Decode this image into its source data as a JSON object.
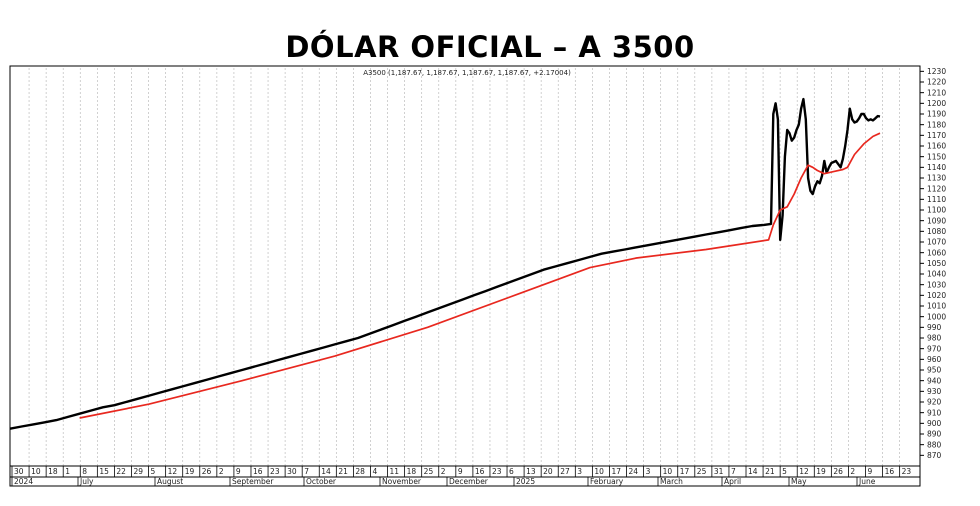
{
  "chart_data": {
    "type": "line",
    "title": "DÓLAR OFICIAL – A 3500",
    "legend_text": "A3500 (1,187.67, 1,187.67, 1,187.67, 1,187.67, +2.17004)",
    "ylim": [
      860,
      1235
    ],
    "y_ticks": [
      870,
      880,
      890,
      900,
      910,
      920,
      930,
      940,
      950,
      960,
      970,
      980,
      990,
      1000,
      1010,
      1020,
      1030,
      1040,
      1050,
      1060,
      1070,
      1080,
      1090,
      1100,
      1110,
      1120,
      1130,
      1140,
      1150,
      1160,
      1170,
      1180,
      1190,
      1200,
      1210,
      1220,
      1230
    ],
    "x_day_labels": [
      "30",
      "10",
      "18",
      "1",
      "8",
      "15",
      "22",
      "29",
      "5",
      "12",
      "19",
      "26",
      "2",
      "9",
      "16",
      "23",
      "30",
      "7",
      "14",
      "21",
      "28",
      "4",
      "11",
      "18",
      "25",
      "2",
      "9",
      "16",
      "23",
      "6",
      "13",
      "20",
      "27",
      "3",
      "10",
      "17",
      "24",
      "3",
      "10",
      "17",
      "25",
      "31",
      "7",
      "14",
      "21",
      "5",
      "12",
      "19",
      "26",
      "2",
      "9",
      "16",
      "23"
    ],
    "x_month_labels": [
      "2024",
      "July",
      "August",
      "September",
      "October",
      "November",
      "December",
      "2025",
      "February",
      "March",
      "April",
      "May",
      "June"
    ],
    "series": [
      {
        "color": "#000000",
        "values": [
          [
            0,
            895
          ],
          [
            5,
            897
          ],
          [
            10,
            899
          ],
          [
            15,
            901
          ],
          [
            20,
            903
          ],
          [
            25,
            906
          ],
          [
            30,
            909
          ],
          [
            35,
            912
          ],
          [
            40,
            915
          ],
          [
            45,
            917
          ],
          [
            50,
            920
          ],
          [
            55,
            923
          ],
          [
            60,
            926
          ],
          [
            65,
            929
          ],
          [
            70,
            932
          ],
          [
            75,
            935
          ],
          [
            80,
            938
          ],
          [
            85,
            941
          ],
          [
            90,
            944
          ],
          [
            95,
            947
          ],
          [
            100,
            950
          ],
          [
            105,
            953
          ],
          [
            110,
            956
          ],
          [
            115,
            959
          ],
          [
            120,
            962
          ],
          [
            125,
            965
          ],
          [
            130,
            968
          ],
          [
            135,
            971
          ],
          [
            140,
            974
          ],
          [
            145,
            977
          ],
          [
            150,
            980
          ],
          [
            155,
            984
          ],
          [
            160,
            988
          ],
          [
            165,
            992
          ],
          [
            170,
            996
          ],
          [
            175,
            1000
          ],
          [
            180,
            1004
          ],
          [
            185,
            1008
          ],
          [
            190,
            1012
          ],
          [
            195,
            1016
          ],
          [
            200,
            1020
          ],
          [
            205,
            1024
          ],
          [
            210,
            1028
          ],
          [
            215,
            1032
          ],
          [
            220,
            1036
          ],
          [
            225,
            1040
          ],
          [
            230,
            1044
          ],
          [
            235,
            1047
          ],
          [
            240,
            1050
          ],
          [
            245,
            1053
          ],
          [
            250,
            1056
          ],
          [
            255,
            1059
          ],
          [
            260,
            1061
          ],
          [
            265,
            1063
          ],
          [
            270,
            1065
          ],
          [
            275,
            1067
          ],
          [
            280,
            1069
          ],
          [
            285,
            1071
          ],
          [
            290,
            1073
          ],
          [
            295,
            1075
          ],
          [
            300,
            1077
          ],
          [
            305,
            1079
          ],
          [
            310,
            1081
          ],
          [
            315,
            1083
          ],
          [
            320,
            1085
          ],
          [
            325,
            1086
          ],
          [
            328,
            1087
          ],
          [
            329,
            1190
          ],
          [
            330,
            1200
          ],
          [
            331,
            1185
          ],
          [
            332,
            1072
          ],
          [
            333,
            1095
          ],
          [
            334,
            1150
          ],
          [
            335,
            1175
          ],
          [
            336,
            1172
          ],
          [
            337,
            1165
          ],
          [
            338,
            1168
          ],
          [
            339,
            1175
          ],
          [
            340,
            1180
          ],
          [
            341,
            1195
          ],
          [
            342,
            1204
          ],
          [
            343,
            1185
          ],
          [
            344,
            1130
          ],
          [
            345,
            1118
          ],
          [
            346,
            1115
          ],
          [
            347,
            1122
          ],
          [
            348,
            1127
          ],
          [
            349,
            1125
          ],
          [
            350,
            1132
          ],
          [
            351,
            1146
          ],
          [
            352,
            1135
          ],
          [
            353,
            1140
          ],
          [
            354,
            1144
          ],
          [
            355,
            1145
          ],
          [
            356,
            1146
          ],
          [
            357,
            1143
          ],
          [
            358,
            1140
          ],
          [
            359,
            1148
          ],
          [
            360,
            1160
          ],
          [
            361,
            1175
          ],
          [
            362,
            1195
          ],
          [
            363,
            1185
          ],
          [
            364,
            1182
          ],
          [
            365,
            1183
          ],
          [
            366,
            1186
          ],
          [
            367,
            1190
          ],
          [
            368,
            1190
          ],
          [
            369,
            1186
          ],
          [
            370,
            1184
          ],
          [
            371,
            1185
          ],
          [
            372,
            1184
          ],
          [
            373,
            1186
          ],
          [
            374,
            1188
          ],
          [
            375,
            1187.67
          ]
        ]
      },
      {
        "color": "#e8281f",
        "values": [
          [
            30,
            905
          ],
          [
            60,
            918
          ],
          [
            100,
            940
          ],
          [
            140,
            963
          ],
          [
            180,
            990
          ],
          [
            220,
            1022
          ],
          [
            250,
            1046
          ],
          [
            270,
            1055
          ],
          [
            300,
            1063
          ],
          [
            327,
            1072
          ],
          [
            329,
            1086
          ],
          [
            332,
            1100
          ],
          [
            335,
            1103
          ],
          [
            338,
            1115
          ],
          [
            341,
            1130
          ],
          [
            344,
            1142
          ],
          [
            346,
            1140
          ],
          [
            348,
            1137
          ],
          [
            351,
            1134
          ],
          [
            355,
            1136
          ],
          [
            359,
            1138
          ],
          [
            361,
            1140
          ],
          [
            364,
            1152
          ],
          [
            368,
            1162
          ],
          [
            372,
            1169
          ],
          [
            375,
            1172
          ]
        ]
      }
    ]
  }
}
